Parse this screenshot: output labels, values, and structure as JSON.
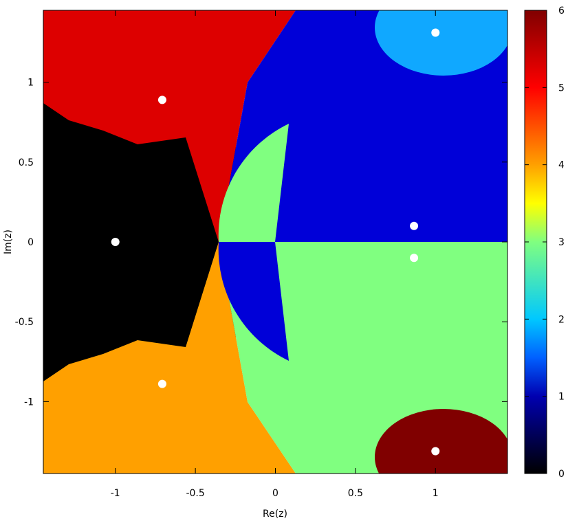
{
  "chart_data": {
    "type": "heatmap",
    "title": "",
    "xlabel": "Re(z)",
    "ylabel": "Im(z)",
    "xlim": [
      -1.45,
      1.45
    ],
    "ylim": [
      -1.45,
      1.45
    ],
    "x_ticks": [
      -1,
      -0.5,
      0,
      0.5,
      1
    ],
    "x_tick_labels": [
      "-1",
      "-0.5",
      "0",
      "0.5",
      "1"
    ],
    "y_ticks": [
      1,
      0.5,
      0,
      -0.5,
      -1
    ],
    "y_tick_labels": [
      "1",
      "0.5",
      "0",
      "-0.5",
      "-1"
    ],
    "colorbar": {
      "range": [
        0,
        6
      ],
      "ticks": [
        6,
        5,
        4,
        3,
        2,
        1,
        0
      ],
      "tick_labels": [
        "6",
        "5",
        "4",
        "3",
        "2",
        "1",
        "0"
      ],
      "stops": [
        {
          "v": 0,
          "color": "#000000"
        },
        {
          "v": 1,
          "color": "#0000b0"
        },
        {
          "v": 1.5,
          "color": "#0060ff"
        },
        {
          "v": 2,
          "color": "#00c8ff"
        },
        {
          "v": 3,
          "color": "#80ff80"
        },
        {
          "v": 3.5,
          "color": "#ffff00"
        },
        {
          "v": 4,
          "color": "#ffa000"
        },
        {
          "v": 5,
          "color": "#ff0000"
        },
        {
          "v": 6,
          "color": "#800000"
        }
      ]
    },
    "basin_colors": {
      "0": "#000000",
      "1": "#0000d8",
      "2": "#10a8ff",
      "3": "#80ff80",
      "4": "#ffa000",
      "5": "#dd0000",
      "6": "#800000"
    },
    "roots": [
      {
        "x": -1.0,
        "y": 0.0,
        "basin": 0
      },
      {
        "x": -0.707,
        "y": 0.889,
        "basin": 5
      },
      {
        "x": -0.707,
        "y": -0.889,
        "basin": 4
      },
      {
        "x": 0.866,
        "y": 0.1,
        "basin": 1
      },
      {
        "x": 0.866,
        "y": -0.1,
        "basin": 3
      },
      {
        "x": 1.0,
        "y": 1.31,
        "basin": 2
      },
      {
        "x": 1.0,
        "y": -1.31,
        "basin": 6
      }
    ]
  }
}
